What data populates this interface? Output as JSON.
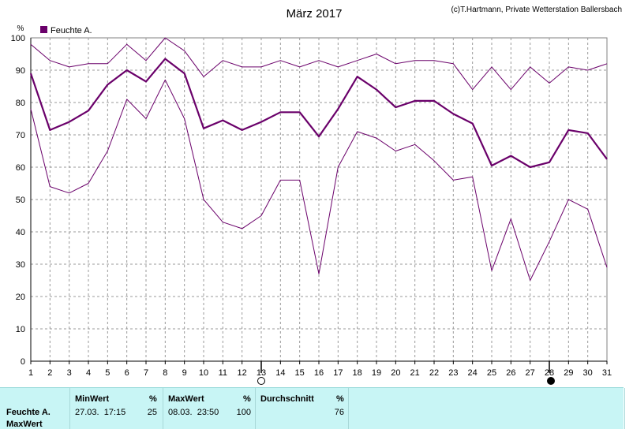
{
  "chart_data": {
    "type": "line",
    "title": "März 2017",
    "credit": "(c)T.Hartmann, Private Wetterstation Ballersbach",
    "ylabel": "%",
    "xlabel": "",
    "ylim": [
      0,
      100
    ],
    "yticks": [
      0,
      10,
      20,
      30,
      40,
      50,
      60,
      70,
      80,
      90,
      100
    ],
    "x": [
      1,
      2,
      3,
      4,
      5,
      6,
      7,
      8,
      9,
      10,
      11,
      12,
      13,
      14,
      15,
      16,
      17,
      18,
      19,
      20,
      21,
      22,
      23,
      24,
      25,
      26,
      27,
      28,
      29,
      30,
      31
    ],
    "grid": true,
    "legend": {
      "position": "top-left",
      "label": "Feuchte A.",
      "color": "#6a006a"
    },
    "series": [
      {
        "name": "Feuchte A.",
        "role": "average",
        "color": "#6a006a",
        "values": [
          89,
          71.5,
          74,
          77.5,
          85.5,
          90,
          86.5,
          93.5,
          89,
          72,
          74.5,
          71.5,
          74,
          77,
          77,
          69.5,
          78,
          88,
          84,
          78.5,
          80.5,
          80.5,
          76.5,
          73.5,
          60.5,
          63.5,
          60,
          61.5,
          71.5,
          70.5,
          62.5
        ]
      },
      {
        "role": "max",
        "color": "#6a006a",
        "values": [
          98,
          93,
          91,
          92,
          92,
          98,
          93,
          100,
          96,
          88,
          93,
          91,
          91,
          93,
          91,
          93,
          91,
          93,
          95,
          92,
          93,
          93,
          92,
          84,
          91,
          84,
          91,
          86,
          91,
          90,
          92
        ]
      },
      {
        "role": "min",
        "color": "#6a006a",
        "values": [
          78,
          54,
          52,
          55,
          65,
          81,
          75,
          87,
          75,
          50,
          43,
          41,
          45,
          56,
          56,
          27,
          60,
          71,
          69,
          65,
          67,
          62,
          56,
          57,
          28,
          44,
          25,
          37,
          50,
          47,
          29
        ]
      }
    ],
    "markers": [
      {
        "day": 13,
        "symbol": "empty-circle"
      },
      {
        "day": 28,
        "symbol": "filled-circle"
      }
    ]
  },
  "stats": {
    "min_header": "MinWert",
    "max_header": "MaxWert",
    "avg_header": "Durchschnitt",
    "unit": "%",
    "row_label": "Feuchte A.",
    "row_label2": "MaxWert",
    "min_time": "27.03.  17:15",
    "min_value": "25",
    "max_time": "08.03.  23:50",
    "max_value": "100",
    "avg_value": "76"
  }
}
